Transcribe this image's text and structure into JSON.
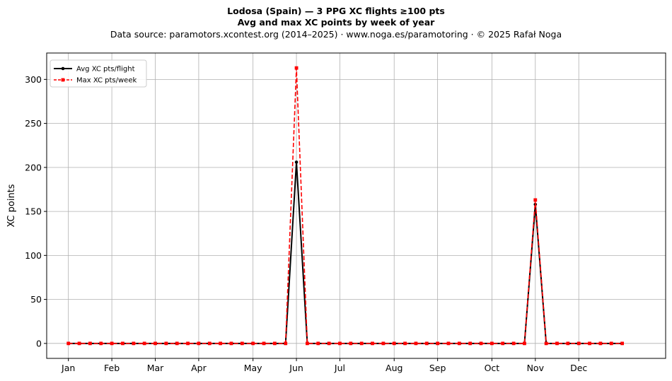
{
  "chart_data": {
    "type": "line",
    "title": "Lodosa (Spain)  —  3 PPG XC flights ≥100 pts",
    "subtitle": "Avg and max XC points by week of year",
    "source": "Data source: paramotors.xcontest.org (2014–2025)  ·  www.noga.es/paramotoring  ·  © 2025 Rafał Noga",
    "xlabel": "",
    "ylabel": "XC points",
    "x": [
      1,
      2,
      3,
      4,
      5,
      6,
      7,
      8,
      9,
      10,
      11,
      12,
      13,
      14,
      15,
      16,
      17,
      18,
      19,
      20,
      21,
      22,
      23,
      24,
      25,
      26,
      27,
      28,
      29,
      30,
      31,
      32,
      33,
      34,
      35,
      36,
      37,
      38,
      39,
      40,
      41,
      42,
      43,
      44,
      45,
      46,
      47,
      48,
      49,
      50,
      51,
      52
    ],
    "xlim": [
      -1,
      56
    ],
    "ylim": [
      -17,
      330
    ],
    "xticks": [
      {
        "week": 1,
        "label": "Jan"
      },
      {
        "week": 5,
        "label": "Feb"
      },
      {
        "week": 9,
        "label": "Mar"
      },
      {
        "week": 13,
        "label": "Apr"
      },
      {
        "week": 18,
        "label": "May"
      },
      {
        "week": 22,
        "label": "Jun"
      },
      {
        "week": 26,
        "label": "Jul"
      },
      {
        "week": 31,
        "label": "Aug"
      },
      {
        "week": 35,
        "label": "Sep"
      },
      {
        "week": 40,
        "label": "Oct"
      },
      {
        "week": 44,
        "label": "Nov"
      },
      {
        "week": 48,
        "label": "Dec"
      }
    ],
    "yticks": [
      0,
      50,
      100,
      150,
      200,
      250,
      300
    ],
    "grid": true,
    "legend_position": "top-left",
    "series": [
      {
        "name": "Avg XC pts/flight",
        "color": "#000000",
        "style": "solid",
        "marker": "circle",
        "values": [
          0,
          0,
          0,
          0,
          0,
          0,
          0,
          0,
          0,
          0,
          0,
          0,
          0,
          0,
          0,
          0,
          0,
          0,
          0,
          0,
          0,
          206,
          0,
          0,
          0,
          0,
          0,
          0,
          0,
          0,
          0,
          0,
          0,
          0,
          0,
          0,
          0,
          0,
          0,
          0,
          0,
          0,
          0,
          158,
          0,
          0,
          0,
          0,
          0,
          0,
          0,
          0
        ]
      },
      {
        "name": "Max XC pts/week",
        "color": "#ff0000",
        "style": "dashed",
        "marker": "square",
        "values": [
          0,
          0,
          0,
          0,
          0,
          0,
          0,
          0,
          0,
          0,
          0,
          0,
          0,
          0,
          0,
          0,
          0,
          0,
          0,
          0,
          0,
          313,
          0,
          0,
          0,
          0,
          0,
          0,
          0,
          0,
          0,
          0,
          0,
          0,
          0,
          0,
          0,
          0,
          0,
          0,
          0,
          0,
          0,
          163,
          0,
          0,
          0,
          0,
          0,
          0,
          0,
          0
        ]
      }
    ]
  }
}
